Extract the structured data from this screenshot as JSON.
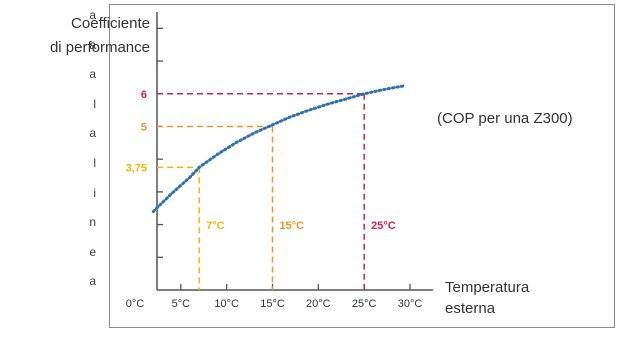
{
  "left_margin_letters": [
    "a",
    "a",
    "a",
    "l",
    "a",
    "l",
    "i",
    "n",
    "e",
    "a"
  ],
  "chart_data": {
    "type": "line",
    "ylabel_lines": [
      "Coefficiente",
      "di performance"
    ],
    "xlabel_lines": [
      "Temperatura",
      "esterna"
    ],
    "x_ticks": [
      "0°C",
      "5°C",
      "10°C",
      "15°C",
      "20°C",
      "25°C",
      "30°C"
    ],
    "xlim": [
      0,
      30
    ],
    "ylim": [
      0,
      8.5
    ],
    "series": [
      {
        "name": "(COP per una Z300)",
        "x": [
          2,
          4,
          6,
          7,
          9,
          11,
          13,
          15,
          17,
          19,
          21,
          23,
          25,
          27,
          29.5
        ],
        "y": [
          2.4,
          2.95,
          3.45,
          3.75,
          4.15,
          4.5,
          4.8,
          5.05,
          5.3,
          5.5,
          5.68,
          5.84,
          6.0,
          6.12,
          6.25
        ]
      }
    ],
    "reference_points": [
      {
        "x": 7,
        "y": 3.75,
        "x_label": "7°C",
        "y_label": "3,75",
        "color": "#f2b705"
      },
      {
        "x": 15,
        "y": 5,
        "x_label": "15°C",
        "y_label": "5",
        "color": "#e8962a"
      },
      {
        "x": 25,
        "y": 6,
        "x_label": "25°C",
        "y_label": "6",
        "color": "#d6204e"
      }
    ],
    "colors": {
      "curve": "#2f6fb3",
      "axis": "#555555",
      "frame": "#8a8a8a"
    },
    "grid": false
  }
}
